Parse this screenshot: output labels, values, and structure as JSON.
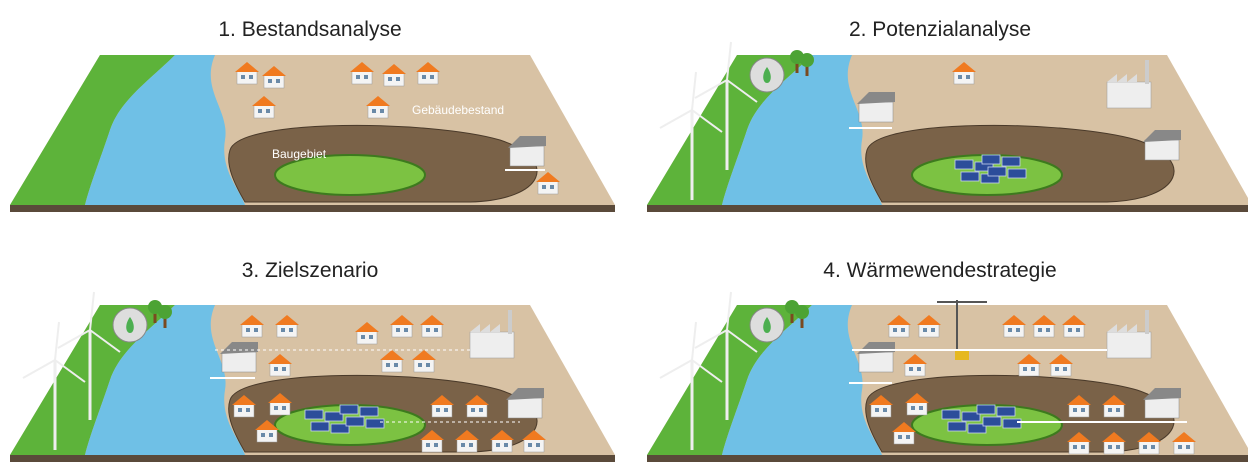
{
  "panels": [
    {
      "title": "1. Bestandsanalyse",
      "labels": [
        "Gebäudebestand",
        "Baugebiet"
      ]
    },
    {
      "title": "2. Potenzialanalyse"
    },
    {
      "title": "3. Zielszenario"
    },
    {
      "title": "4. Wärmewendestrategie"
    }
  ]
}
